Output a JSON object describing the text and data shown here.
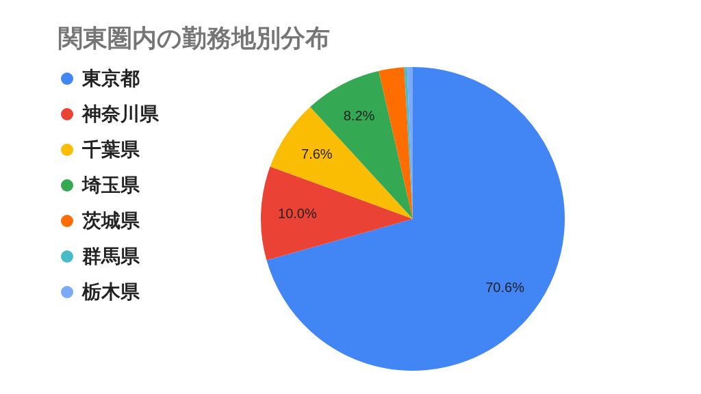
{
  "chart_data": {
    "type": "pie",
    "title": "関東圏内の勤務地別分布",
    "categories": [
      "東京都",
      "神奈川県",
      "千葉県",
      "埼玉県",
      "茨城県",
      "群馬県",
      "栃木県"
    ],
    "values": [
      70.6,
      10.0,
      7.6,
      8.2,
      2.7,
      0.3,
      0.6
    ],
    "colors": [
      "#4285f4",
      "#ea4335",
      "#fbbc04",
      "#34a853",
      "#ff6d01",
      "#46bdc6",
      "#7baaf7"
    ],
    "value_labels": [
      "70.6%",
      "10.0%",
      "7.6%",
      "8.2%",
      null,
      null,
      null
    ],
    "legend": "left"
  }
}
